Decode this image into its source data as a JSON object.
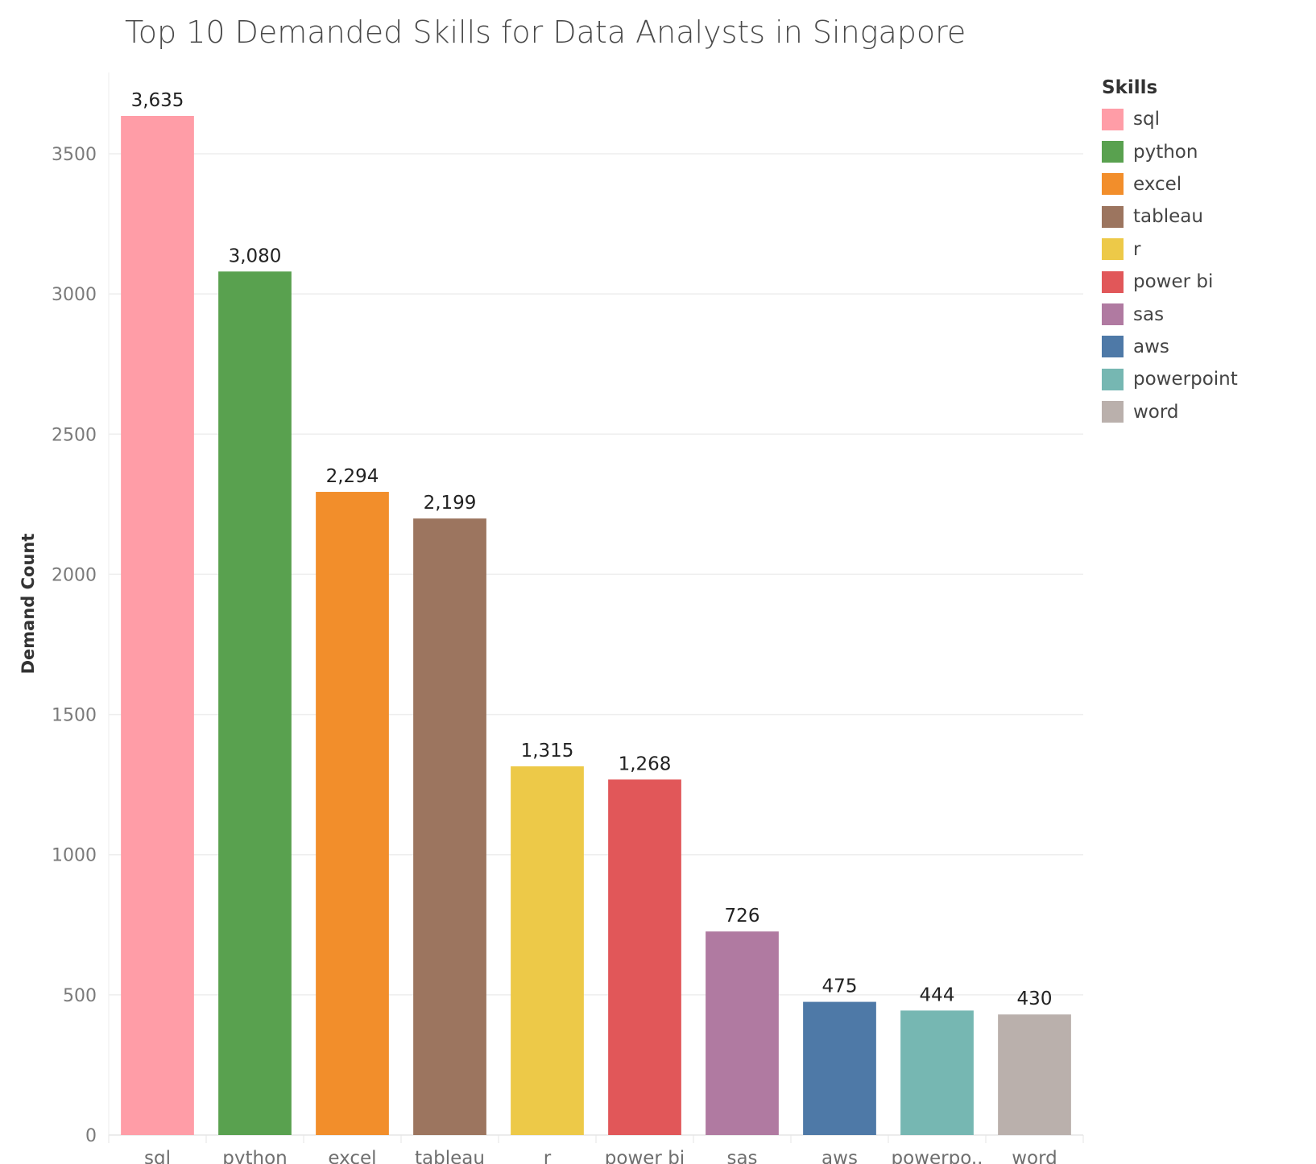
{
  "chart_data": {
    "type": "bar",
    "title": "Top 10 Demanded Skills for Data Analysts in Singapore",
    "ylabel": "Demand Count",
    "xlabel": "",
    "categories": [
      "sql",
      "python",
      "excel",
      "tableau",
      "r",
      "power bi",
      "sas",
      "aws",
      "powerpoint",
      "word"
    ],
    "category_tick_labels": [
      "sql",
      "python",
      "excel",
      "tableau",
      "r",
      "power bi",
      "sas",
      "aws",
      "powerpo..",
      "word"
    ],
    "values": [
      3635,
      3080,
      2294,
      2199,
      1315,
      1268,
      726,
      475,
      444,
      430
    ],
    "value_labels": [
      "3,635",
      "3,080",
      "2,294",
      "2,199",
      "1,315",
      "1,268",
      "726",
      "475",
      "444",
      "430"
    ],
    "colors": [
      "#ff9da7",
      "#59a14f",
      "#f28e2b",
      "#9c755f",
      "#edc948",
      "#e15759",
      "#b07aa1",
      "#4e79a7",
      "#76b7b2",
      "#bab0ac"
    ],
    "yticks": [
      0,
      500,
      1000,
      1500,
      2000,
      2500,
      3000,
      3500
    ],
    "ytick_labels": [
      "0",
      "500",
      "1000",
      "1500",
      "2000",
      "2500",
      "3000",
      "3500"
    ],
    "ylim": [
      0,
      3790
    ],
    "grid": true,
    "legend": {
      "title": "Skills",
      "placement": "right",
      "entries": [
        "sql",
        "python",
        "excel",
        "tableau",
        "r",
        "power bi",
        "sas",
        "aws",
        "powerpoint",
        "word"
      ]
    }
  }
}
